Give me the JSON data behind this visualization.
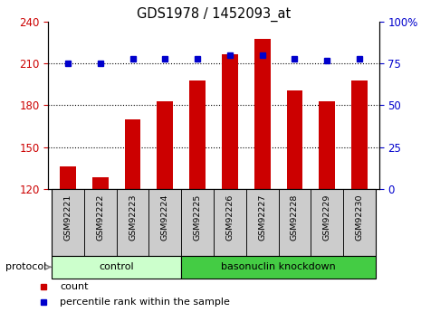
{
  "title": "GDS1978 / 1452093_at",
  "samples": [
    "GSM92221",
    "GSM92222",
    "GSM92223",
    "GSM92224",
    "GSM92225",
    "GSM92226",
    "GSM92227",
    "GSM92228",
    "GSM92229",
    "GSM92230"
  ],
  "counts": [
    136,
    128,
    170,
    183,
    198,
    217,
    228,
    191,
    183,
    198
  ],
  "percentiles": [
    75,
    75,
    78,
    78,
    78,
    80,
    80,
    78,
    77,
    78
  ],
  "ylim_left": [
    120,
    240
  ],
  "ylim_right": [
    0,
    100
  ],
  "yticks_left": [
    120,
    150,
    180,
    210,
    240
  ],
  "yticks_right": [
    0,
    25,
    50,
    75,
    100
  ],
  "ytick_labels_right": [
    "0",
    "25",
    "50",
    "75",
    "100%"
  ],
  "hlines": [
    150,
    180,
    210
  ],
  "bar_color": "#cc0000",
  "dot_color": "#0000cc",
  "bg_color": "#ffffff",
  "tick_label_color_left": "#cc0000",
  "tick_label_color_right": "#0000cc",
  "groups": [
    {
      "label": "control",
      "start": 0,
      "end": 4,
      "color": "#ccffcc"
    },
    {
      "label": "basonuclin knockdown",
      "start": 4,
      "end": 10,
      "color": "#44cc44"
    }
  ],
  "protocol_label": "protocol",
  "legend_items": [
    {
      "color": "#cc0000",
      "label": "count"
    },
    {
      "color": "#0000cc",
      "label": "percentile rank within the sample"
    }
  ],
  "xticklabel_bg": "#cccccc",
  "bar_width": 0.5
}
